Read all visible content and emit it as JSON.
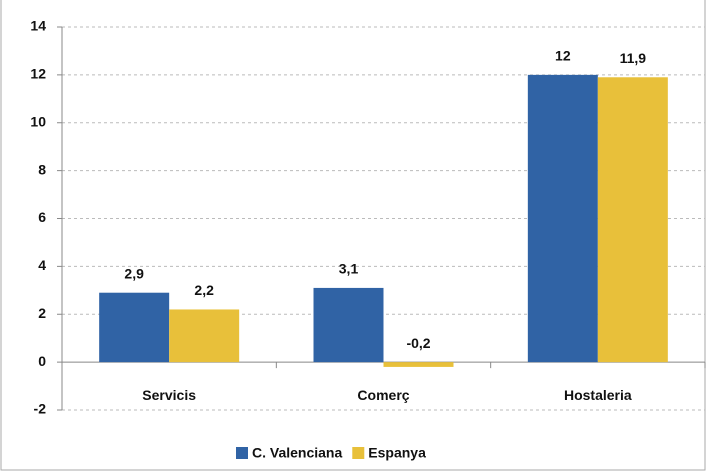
{
  "chart_data": {
    "type": "bar",
    "categories": [
      "Servicis",
      "Comerç",
      "Hostaleria"
    ],
    "series": [
      {
        "name": "C. Valenciana",
        "color": "#3063a5",
        "values": [
          2.9,
          3.1,
          12
        ],
        "value_labels": [
          "2,9",
          "3,1",
          "12"
        ]
      },
      {
        "name": "Espanya",
        "color": "#e8c03a",
        "values": [
          2.2,
          -0.2,
          11.9
        ],
        "value_labels": [
          "2,2",
          "-0,2",
          "11,9"
        ]
      }
    ],
    "ylim": [
      -2,
      14
    ],
    "yticks": [
      -2,
      0,
      2,
      4,
      6,
      8,
      10,
      12,
      14
    ],
    "grid": true,
    "legend": "bottom"
  }
}
